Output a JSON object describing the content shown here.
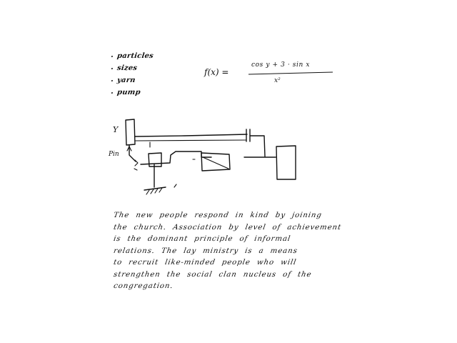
{
  "page": {
    "title": "",
    "background": "#ffffff",
    "ink_color": "#111111"
  },
  "notes": {
    "bullets": [
      "particles",
      "sizes",
      "yarn",
      "pump"
    ]
  },
  "formula": {
    "lhs": "f(x) =",
    "numerator": "cos y + 3 · sin x",
    "denominator": "x²"
  },
  "diagram": {
    "labels": {
      "y_label": "Y",
      "x_label": "Pin"
    }
  },
  "paragraph": {
    "lines": [
      "The new people respond in kind by joining",
      "the church. Association by level of achievement",
      "is the dominant principle of informal",
      "relations. The lay ministry is a means",
      "to recruit like-minded people who will",
      "strengthen the social clan nucleus of the",
      "congregation."
    ]
  }
}
